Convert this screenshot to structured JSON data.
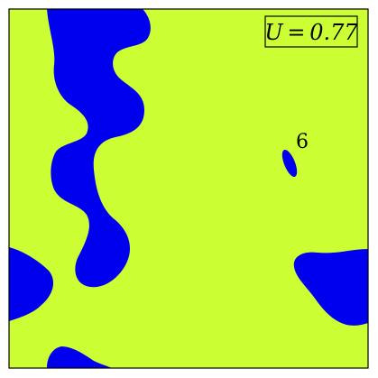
{
  "figure": {
    "value_label": "U = 0.77",
    "region_label": "6"
  },
  "colors": {
    "background_field": "#ccff33",
    "region_fill": "#0000ee",
    "frame": "#000000"
  }
}
